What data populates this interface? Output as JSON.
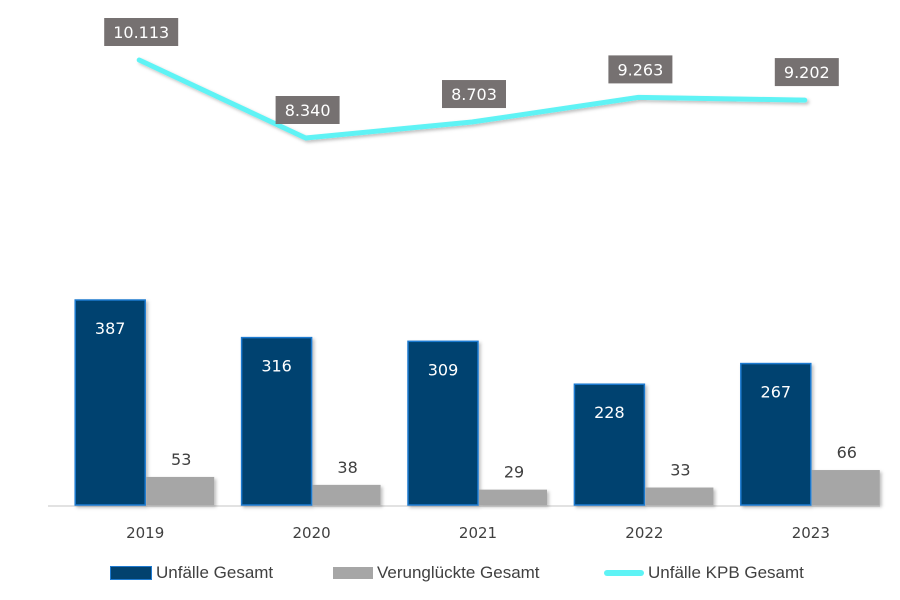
{
  "chart_data": {
    "type": "bar+line",
    "title": "",
    "categories": [
      "2019",
      "2020",
      "2021",
      "2022",
      "2023"
    ],
    "series": [
      {
        "name": "Unfälle Gesamt",
        "type": "bar",
        "axis": "primary",
        "color": "#02426f",
        "border": "#1f7ad0",
        "values": [
          387,
          316,
          309,
          228,
          267
        ],
        "labels": [
          "387",
          "316",
          "309",
          "228",
          "267"
        ]
      },
      {
        "name": "Verunglückte Gesamt",
        "type": "bar",
        "axis": "primary",
        "color": "#a6a6a6",
        "values": [
          53,
          38,
          29,
          33,
          66
        ],
        "labels": [
          "53",
          "38",
          "29",
          "33",
          "66"
        ]
      },
      {
        "name": "Unfälle KPB Gesamt",
        "type": "line",
        "axis": "secondary",
        "color": "#5ef3f5",
        "values": [
          10113,
          8340,
          8703,
          9263,
          9202
        ],
        "labels": [
          "10.113",
          "8.340",
          "8.703",
          "9.263",
          "9.202"
        ]
      }
    ],
    "primary_ylim": [
      0,
      1000
    ],
    "secondary_ylim": [
      0,
      11500
    ],
    "xlabel": "",
    "ylabel": "",
    "grid": false,
    "legend": "bottom",
    "label_box_color": "#767171"
  }
}
